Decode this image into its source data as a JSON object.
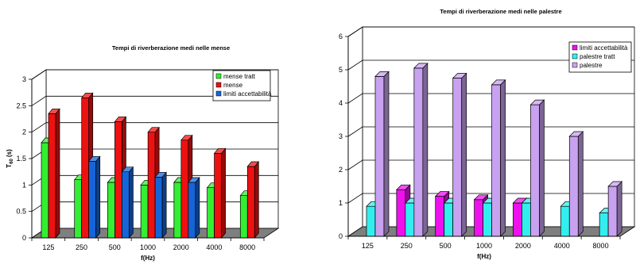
{
  "chart_data": [
    {
      "type": "bar",
      "title": "Tempi di riverberazione medi nelle mense",
      "xlabel": "f(Hz)",
      "ylabel_main": "T",
      "ylabel_sub": "60",
      "ylabel_unit": " (s)",
      "categories": [
        "125",
        "250",
        "500",
        "1000",
        "2000",
        "4000",
        "8000"
      ],
      "ylim": [
        0,
        3
      ],
      "yticks": [
        "0",
        "0.5",
        "1",
        "1.5",
        "2",
        "2.5",
        "3"
      ],
      "grid": true,
      "legend_position": "top-right",
      "series": [
        {
          "name": "mense tratt",
          "color": "#33ee33",
          "values": [
            1.8,
            1.1,
            1.05,
            1.0,
            1.05,
            0.95,
            0.8
          ]
        },
        {
          "name": "mense",
          "color": "#ee1111",
          "values": [
            2.35,
            2.65,
            2.2,
            2.0,
            1.85,
            1.6,
            1.35
          ]
        },
        {
          "name": "limiti accettabilità",
          "color": "#1565d8",
          "values": [
            null,
            1.45,
            1.25,
            1.15,
            1.05,
            null,
            null
          ]
        }
      ]
    },
    {
      "type": "bar",
      "title": "Tempi di riverberazione medi nelle palestre",
      "xlabel": "f(Hz)",
      "ylabel_main": "",
      "ylabel_sub": "",
      "ylabel_unit": "",
      "categories": [
        "125",
        "250",
        "500",
        "1000",
        "2000",
        "4000",
        "8000"
      ],
      "ylim": [
        0,
        6
      ],
      "yticks": [
        "0",
        "1",
        "2",
        "3",
        "4",
        "5",
        "6"
      ],
      "grid": true,
      "legend_position": "top-right",
      "series": [
        {
          "name": "limiti accettabilità",
          "color": "#ee11ee",
          "values": [
            null,
            1.4,
            1.2,
            1.1,
            1.0,
            null,
            null
          ]
        },
        {
          "name": "palestre tratt",
          "color": "#33eeee",
          "values": [
            0.9,
            1.0,
            1.0,
            1.0,
            1.0,
            0.9,
            0.7
          ]
        },
        {
          "name": "palestre",
          "color": "#c8a2f0",
          "values": [
            4.8,
            5.05,
            4.75,
            4.55,
            3.95,
            3.0,
            1.5
          ]
        }
      ]
    }
  ]
}
